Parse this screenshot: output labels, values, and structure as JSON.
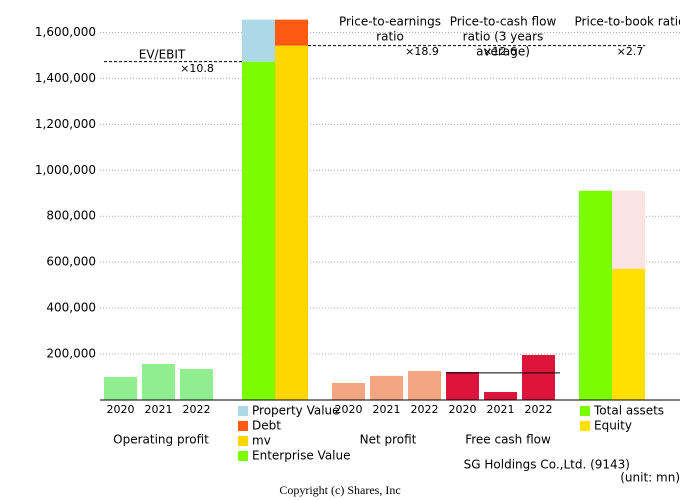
{
  "chart_data": {
    "type": "valuation",
    "ylim": [
      0,
      1650000
    ],
    "yticks": [
      {
        "value": 200000,
        "label": "200,000"
      },
      {
        "value": 400000,
        "label": "400,000"
      },
      {
        "value": 600000,
        "label": "600,000"
      },
      {
        "value": 800000,
        "label": "800,000"
      },
      {
        "value": 1000000,
        "label": "1,000,000"
      },
      {
        "value": 1200000,
        "label": "1,200,000"
      },
      {
        "value": 1400000,
        "label": "1,400,000"
      },
      {
        "value": 1600000,
        "label": "1,600,000"
      }
    ],
    "grid": true,
    "operating_profit": {
      "name": "Operating profit",
      "categories": [
        "2020",
        "2021",
        "2022"
      ],
      "values": [
        100000,
        157000,
        135000
      ],
      "color": "#90ee90"
    },
    "enterprise": {
      "series": [
        {
          "name": "Enterprise Value",
          "color": "#7cfc00",
          "values": [
            1473000
          ]
        },
        {
          "name": "Property Value",
          "color": "#add8e6",
          "values": [
            183000
          ]
        }
      ]
    },
    "market": {
      "series": [
        {
          "name": "mv",
          "color": "#ffd700",
          "values": [
            1543000
          ]
        },
        {
          "name": "Debt",
          "color": "#ff5a14",
          "values": [
            113000
          ]
        }
      ]
    },
    "ev_ebit": {
      "name": "EV/EBIT",
      "multiple": {
        "value": 10.8,
        "label": "×10.8"
      }
    },
    "net_profit": {
      "name": "Net profit",
      "categories": [
        "2020",
        "2021",
        "2022"
      ],
      "values": [
        74000,
        105000,
        126000
      ],
      "color": "#f4a582"
    },
    "per": {
      "name_lines": [
        "Price-to-earnings",
        "ratio"
      ],
      "multiple": {
        "value": 18.9,
        "label": "×18.9"
      }
    },
    "free_cash_flow": {
      "name": "Free cash flow",
      "categories": [
        "2020",
        "2021",
        "2022"
      ],
      "values": [
        122000,
        35000,
        196000
      ],
      "average": 118000,
      "color": "#dc143c"
    },
    "pcfr": {
      "name_lines": [
        "Price-to-cash flow",
        "ratio (3 years",
        "average)"
      ],
      "multiple": {
        "value": 12.6,
        "label": "×12.6"
      }
    },
    "balance": {
      "series": [
        {
          "name": "Total assets",
          "color": "#7cfc00",
          "values": [
            911000
          ]
        },
        {
          "name": "Equity",
          "color": "#ffe000",
          "values": [
            571000
          ]
        }
      ],
      "background": "#fbe3e3"
    },
    "pbr": {
      "name_lines": [
        "Price-to-book ratio"
      ],
      "multiple": {
        "value": 2.7,
        "label": "×2.7"
      }
    },
    "company": "SG Holdings Co.,Ltd. (9143)",
    "unit": "(unit: mn)",
    "copyright": "Copyright (c) Shares, Inc"
  }
}
